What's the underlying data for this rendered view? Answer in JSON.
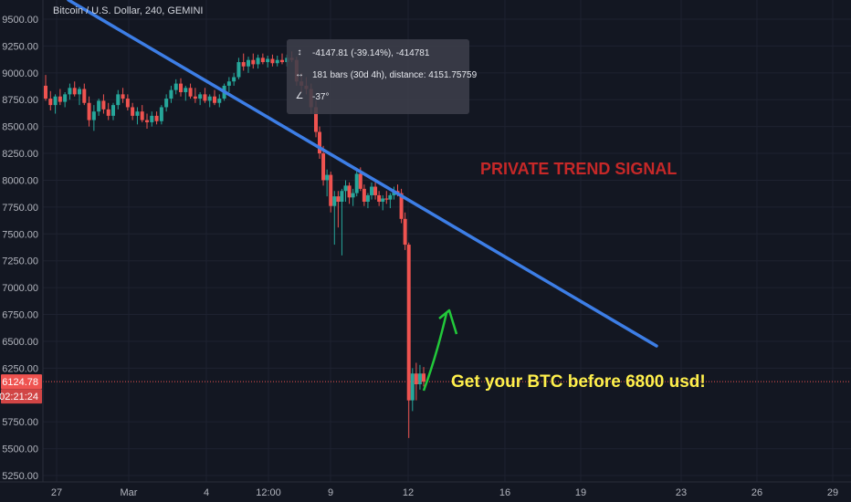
{
  "header": {
    "symbol_title": "Bitcoin / U.S. Dollar, 240, GEMINI"
  },
  "price_axis": {
    "ticks": [
      "9500.00",
      "9250.00",
      "9000.00",
      "8750.00",
      "8500.00",
      "8250.00",
      "8000.00",
      "7750.00",
      "7500.00",
      "7250.00",
      "7000.00",
      "6750.00",
      "6500.00",
      "6250.00",
      "5750.00",
      "5500.00",
      "5250.00"
    ],
    "last_price": "6124.78",
    "countdown": "02:21:24"
  },
  "time_axis": {
    "ticks": [
      "27",
      "Mar",
      "4",
      "12:00",
      "9",
      "12",
      "16",
      "19",
      "23",
      "26",
      "29"
    ]
  },
  "measure": {
    "price_change": "-4147.81 (-39.14%), -414781",
    "bars_distance": "181 bars (30d 4h), distance: 4151.75759",
    "angle": "-37°"
  },
  "annotations": {
    "signal": "PRIVATE TREND SIGNAL",
    "cta": "Get your BTC before 6800 usd!"
  },
  "colors": {
    "background": "#131722",
    "up": "#26a69a",
    "down": "#ef5350",
    "trendline": "#3d7ee6",
    "arrow": "#22c93a",
    "signal_text": "#c62828",
    "cta_text": "#fff04c",
    "price_line": "#ef5350"
  },
  "chart_data": {
    "type": "candlestick",
    "title": "Bitcoin / U.S. Dollar, 240, GEMINI",
    "ylim": [
      5200,
      9650
    ],
    "y_ticks": [
      9500,
      9250,
      9000,
      8750,
      8500,
      8250,
      8000,
      7750,
      7500,
      7250,
      7000,
      6750,
      6500,
      6250,
      5750,
      5500,
      5250
    ],
    "x_ticks": [
      "27",
      "Mar",
      "4",
      "12:00",
      "9",
      "12",
      "16",
      "19",
      "23",
      "26",
      "29"
    ],
    "last_price": 6124.78,
    "series": [
      {
        "name": "segment-1",
        "points": [
          {
            "o": 8880,
            "h": 8980,
            "l": 8740,
            "c": 8760
          },
          {
            "o": 8760,
            "h": 8830,
            "l": 8650,
            "c": 8700
          },
          {
            "o": 8700,
            "h": 8800,
            "l": 8620,
            "c": 8780
          },
          {
            "o": 8780,
            "h": 8850,
            "l": 8700,
            "c": 8730
          },
          {
            "o": 8730,
            "h": 8820,
            "l": 8680,
            "c": 8800
          },
          {
            "o": 8800,
            "h": 8900,
            "l": 8750,
            "c": 8860
          },
          {
            "o": 8860,
            "h": 8920,
            "l": 8780,
            "c": 8800
          },
          {
            "o": 8800,
            "h": 8870,
            "l": 8700,
            "c": 8850
          },
          {
            "o": 8850,
            "h": 8900,
            "l": 8700,
            "c": 8720
          },
          {
            "o": 8720,
            "h": 8780,
            "l": 8500,
            "c": 8560
          },
          {
            "o": 8560,
            "h": 8700,
            "l": 8460,
            "c": 8640
          },
          {
            "o": 8640,
            "h": 8760,
            "l": 8600,
            "c": 8740
          },
          {
            "o": 8740,
            "h": 8800,
            "l": 8620,
            "c": 8660
          },
          {
            "o": 8660,
            "h": 8720,
            "l": 8560,
            "c": 8600
          },
          {
            "o": 8600,
            "h": 8720,
            "l": 8560,
            "c": 8700
          },
          {
            "o": 8700,
            "h": 8840,
            "l": 8660,
            "c": 8800
          },
          {
            "o": 8800,
            "h": 8860,
            "l": 8720,
            "c": 8760
          },
          {
            "o": 8760,
            "h": 8800,
            "l": 8650,
            "c": 8680
          },
          {
            "o": 8680,
            "h": 8720,
            "l": 8560,
            "c": 8600
          },
          {
            "o": 8600,
            "h": 8680,
            "l": 8520,
            "c": 8640
          },
          {
            "o": 8640,
            "h": 8700,
            "l": 8540,
            "c": 8560
          },
          {
            "o": 8560,
            "h": 8620,
            "l": 8480,
            "c": 8540
          },
          {
            "o": 8540,
            "h": 8640,
            "l": 8500,
            "c": 8600
          },
          {
            "o": 8600,
            "h": 8640,
            "l": 8520,
            "c": 8550
          },
          {
            "o": 8550,
            "h": 8700,
            "l": 8520,
            "c": 8680
          },
          {
            "o": 8680,
            "h": 8800,
            "l": 8640,
            "c": 8760
          },
          {
            "o": 8760,
            "h": 8880,
            "l": 8720,
            "c": 8840
          },
          {
            "o": 8840,
            "h": 8940,
            "l": 8800,
            "c": 8900
          },
          {
            "o": 8900,
            "h": 8950,
            "l": 8780,
            "c": 8820
          },
          {
            "o": 8820,
            "h": 8880,
            "l": 8740,
            "c": 8860
          },
          {
            "o": 8860,
            "h": 8900,
            "l": 8760,
            "c": 8780
          },
          {
            "o": 8780,
            "h": 8860,
            "l": 8720,
            "c": 8760
          },
          {
            "o": 8760,
            "h": 8820,
            "l": 8700,
            "c": 8800
          },
          {
            "o": 8800,
            "h": 8860,
            "l": 8720,
            "c": 8740
          },
          {
            "o": 8740,
            "h": 8800,
            "l": 8680,
            "c": 8780
          },
          {
            "o": 8780,
            "h": 8840,
            "l": 8700,
            "c": 8720
          },
          {
            "o": 8720,
            "h": 8800,
            "l": 8680,
            "c": 8760
          },
          {
            "o": 8760,
            "h": 8900,
            "l": 8740,
            "c": 8880
          },
          {
            "o": 8880,
            "h": 8960,
            "l": 8820,
            "c": 8920
          },
          {
            "o": 8920,
            "h": 9000,
            "l": 8880,
            "c": 8960
          },
          {
            "o": 8960,
            "h": 9140,
            "l": 8940,
            "c": 9100
          },
          {
            "o": 9100,
            "h": 9180,
            "l": 9020,
            "c": 9060
          },
          {
            "o": 9060,
            "h": 9150,
            "l": 9000,
            "c": 9120
          },
          {
            "o": 9120,
            "h": 9180,
            "l": 9040,
            "c": 9080
          },
          {
            "o": 9080,
            "h": 9170,
            "l": 9040,
            "c": 9140
          },
          {
            "o": 9140,
            "h": 9180,
            "l": 9080,
            "c": 9100
          },
          {
            "o": 9100,
            "h": 9160,
            "l": 9050,
            "c": 9130
          },
          {
            "o": 9130,
            "h": 9170,
            "l": 9060,
            "c": 9090
          },
          {
            "o": 9090,
            "h": 9160,
            "l": 9060,
            "c": 9120
          },
          {
            "o": 9120,
            "h": 9180,
            "l": 9080,
            "c": 9100
          },
          {
            "o": 9100,
            "h": 9170,
            "l": 9060,
            "c": 9140
          },
          {
            "o": 9140,
            "h": 9200,
            "l": 9100,
            "c": 9120
          },
          {
            "o": 9120,
            "h": 9150,
            "l": 8880,
            "c": 8920
          },
          {
            "o": 8920,
            "h": 9000,
            "l": 8820,
            "c": 8880
          },
          {
            "o": 8880,
            "h": 8960,
            "l": 8800,
            "c": 8850
          },
          {
            "o": 8850,
            "h": 8900,
            "l": 8620,
            "c": 8680
          },
          {
            "o": 8680,
            "h": 8740,
            "l": 8400,
            "c": 8450
          }
        ]
      },
      {
        "name": "segment-2",
        "points": [
          {
            "o": 8450,
            "h": 8500,
            "l": 8200,
            "c": 8250
          },
          {
            "o": 8250,
            "h": 8320,
            "l": 7950,
            "c": 8000
          },
          {
            "o": 8000,
            "h": 8100,
            "l": 7850,
            "c": 8050
          },
          {
            "o": 8050,
            "h": 8080,
            "l": 7700,
            "c": 7760
          },
          {
            "o": 7760,
            "h": 7900,
            "l": 7400,
            "c": 7850
          },
          {
            "o": 7850,
            "h": 7900,
            "l": 7560,
            "c": 7800
          },
          {
            "o": 7800,
            "h": 7920,
            "l": 7300,
            "c": 7900
          },
          {
            "o": 7900,
            "h": 8000,
            "l": 7800,
            "c": 7950
          },
          {
            "o": 7950,
            "h": 7980,
            "l": 7780,
            "c": 7840
          },
          {
            "o": 7840,
            "h": 7920,
            "l": 7760,
            "c": 7880
          },
          {
            "o": 7880,
            "h": 8100,
            "l": 7850,
            "c": 8060
          },
          {
            "o": 8060,
            "h": 8120,
            "l": 7900,
            "c": 7920
          },
          {
            "o": 7920,
            "h": 7960,
            "l": 7760,
            "c": 7800
          },
          {
            "o": 7800,
            "h": 7880,
            "l": 7740,
            "c": 7860
          },
          {
            "o": 7860,
            "h": 7980,
            "l": 7820,
            "c": 7940
          },
          {
            "o": 7940,
            "h": 7980,
            "l": 7820,
            "c": 7860
          },
          {
            "o": 7860,
            "h": 7900,
            "l": 7760,
            "c": 7800
          },
          {
            "o": 7800,
            "h": 7860,
            "l": 7720,
            "c": 7830
          },
          {
            "o": 7830,
            "h": 7900,
            "l": 7780,
            "c": 7820
          },
          {
            "o": 7820,
            "h": 7880,
            "l": 7740,
            "c": 7860
          },
          {
            "o": 7860,
            "h": 7940,
            "l": 7820,
            "c": 7900
          },
          {
            "o": 7900,
            "h": 7960,
            "l": 7850,
            "c": 7880
          },
          {
            "o": 7880,
            "h": 7920,
            "l": 7600,
            "c": 7640
          },
          {
            "o": 7640,
            "h": 7700,
            "l": 7350,
            "c": 7400
          },
          {
            "o": 7400,
            "h": 7420,
            "l": 5600,
            "c": 5950
          },
          {
            "o": 5950,
            "h": 6250,
            "l": 5850,
            "c": 6200
          },
          {
            "o": 6200,
            "h": 6300,
            "l": 5950,
            "c": 6100
          },
          {
            "o": 6100,
            "h": 6280,
            "l": 6050,
            "c": 6200
          },
          {
            "o": 6200,
            "h": 6260,
            "l": 6080,
            "c": 6124
          }
        ]
      }
    ],
    "trendline": {
      "start": [
        0,
        9650
      ],
      "end": [
        1,
        6450
      ]
    }
  }
}
